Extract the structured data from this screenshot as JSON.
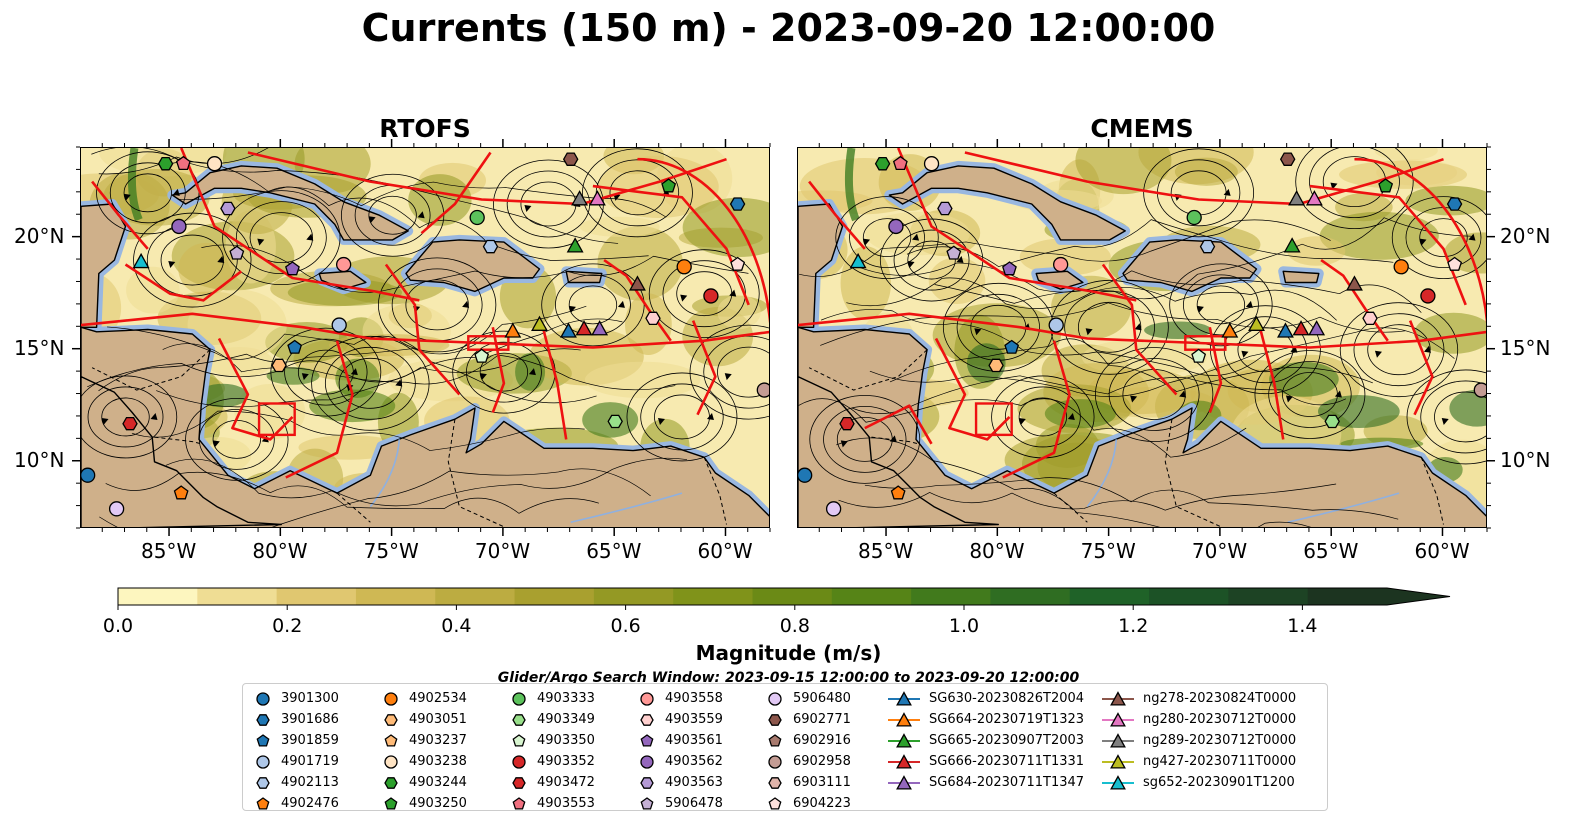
{
  "chart_data": {
    "type": "heatmap",
    "title": "Currents (150 m) - 2023-09-20 12:00:00",
    "panels": [
      {
        "title": "RTOFS"
      },
      {
        "title": "CMEMS"
      }
    ],
    "x_ticks": [
      "85°W",
      "80°W",
      "75°W",
      "70°W",
      "65°W",
      "60°W"
    ],
    "y_ticks": [
      "20°N",
      "15°N",
      "10°N"
    ],
    "xlim": [
      -89,
      -58
    ],
    "ylim": [
      7,
      24
    ],
    "colorbar": {
      "label": "Magnitude (m/s)",
      "ticks": [
        "0.0",
        "0.2",
        "0.4",
        "0.6",
        "0.8",
        "1.0",
        "1.2",
        "1.4"
      ],
      "range": [
        0,
        1.5
      ],
      "colors": [
        "#fdf6bf",
        "#efdd94",
        "#e0c770",
        "#cfb854",
        "#bcac41",
        "#a9a02f",
        "#949924",
        "#80931a",
        "#6b8a16",
        "#568417",
        "#417a1c",
        "#2f6d22",
        "#1f6228",
        "#1c5226",
        "#1d4324",
        "#1c3420"
      ]
    },
    "window_title": "Glider/Argo Search Window: 2023-09-15 12:00:00 to 2023-09-20 12:00:00",
    "legend_entries": [
      {
        "label": "3901300",
        "marker": "circle",
        "color": "#1f77b4"
      },
      {
        "label": "3901686",
        "marker": "hexagon",
        "color": "#1f77b4"
      },
      {
        "label": "3901859",
        "marker": "pentagon",
        "color": "#1f77b4"
      },
      {
        "label": "4901719",
        "marker": "circle",
        "color": "#aec7e8"
      },
      {
        "label": "4902113",
        "marker": "hexagon",
        "color": "#aec7e8"
      },
      {
        "label": "4902476",
        "marker": "pentagon",
        "color": "#ff7f0e"
      },
      {
        "label": "4902534",
        "marker": "circle",
        "color": "#ff7f0e"
      },
      {
        "label": "4903051",
        "marker": "hexagon",
        "color": "#ffbb78"
      },
      {
        "label": "4903237",
        "marker": "pentagon",
        "color": "#ffbb78"
      },
      {
        "label": "4903238",
        "marker": "circle",
        "color": "#ffe4c4"
      },
      {
        "label": "4903244",
        "marker": "hexagon",
        "color": "#2ca02c"
      },
      {
        "label": "4903250",
        "marker": "pentagon",
        "color": "#2ca02c"
      },
      {
        "label": "4903333",
        "marker": "circle",
        "color": "#5cc25c"
      },
      {
        "label": "4903349",
        "marker": "hexagon",
        "color": "#98df8a"
      },
      {
        "label": "4903350",
        "marker": "pentagon",
        "color": "#d8f5d0"
      },
      {
        "label": "4903352",
        "marker": "circle",
        "color": "#d62728"
      },
      {
        "label": "4903472",
        "marker": "hexagon",
        "color": "#d62728"
      },
      {
        "label": "4903553",
        "marker": "pentagon",
        "color": "#f07080"
      },
      {
        "label": "4903558",
        "marker": "circle",
        "color": "#ff9896"
      },
      {
        "label": "4903559",
        "marker": "hexagon",
        "color": "#ffd0cf"
      },
      {
        "label": "4903561",
        "marker": "pentagon",
        "color": "#9467bd"
      },
      {
        "label": "4903562",
        "marker": "circle",
        "color": "#9467bd"
      },
      {
        "label": "4903563",
        "marker": "hexagon",
        "color": "#b59ad6"
      },
      {
        "label": "5906478",
        "marker": "pentagon",
        "color": "#c5b0d5"
      },
      {
        "label": "5906480",
        "marker": "circle",
        "color": "#e2c9f5"
      },
      {
        "label": "6902771",
        "marker": "hexagon",
        "color": "#8c564b"
      },
      {
        "label": "6902916",
        "marker": "pentagon",
        "color": "#a87a6e"
      },
      {
        "label": "6902958",
        "marker": "circle",
        "color": "#c49c94"
      },
      {
        "label": "6903111",
        "marker": "hexagon",
        "color": "#e0b4aa"
      },
      {
        "label": "6904223",
        "marker": "pentagon",
        "color": "#fde0dc"
      },
      {
        "label": "SG630-20230826T2004",
        "marker": "triangle",
        "color": "#1f77b4"
      },
      {
        "label": "SG664-20230719T1323",
        "marker": "triangle",
        "color": "#ff7f0e"
      },
      {
        "label": "SG665-20230907T2003",
        "marker": "triangle",
        "color": "#2ca02c"
      },
      {
        "label": "SG666-20230711T1331",
        "marker": "triangle",
        "color": "#d62728"
      },
      {
        "label": "SG684-20230711T1347",
        "marker": "triangle",
        "color": "#9467bd"
      },
      {
        "label": "ng278-20230824T0000",
        "marker": "triangle",
        "color": "#8c564b"
      },
      {
        "label": "ng280-20230712T0000",
        "marker": "triangle",
        "color": "#e377c2"
      },
      {
        "label": "ng289-20230712T0000",
        "marker": "triangle",
        "color": "#7f7f7f"
      },
      {
        "label": "ng427-20230711T0000",
        "marker": "triangle",
        "color": "#bcbd22"
      },
      {
        "label": "sg652-20230901T1200",
        "marker": "triangle",
        "color": "#17becf"
      }
    ],
    "platform_positions": [
      {
        "label": "SG630-20230826T2004",
        "lon": -67.1,
        "lat": 15.8
      },
      {
        "label": "SG664-20230719T1323",
        "lon": -69.6,
        "lat": 15.8
      },
      {
        "label": "SG665-20230907T2003",
        "lon": -66.8,
        "lat": 19.6
      },
      {
        "label": "SG666-20230711T1331",
        "lon": -66.4,
        "lat": 15.9
      },
      {
        "label": "SG684-20230711T1347",
        "lon": -65.7,
        "lat": 15.9
      },
      {
        "label": "ng278-20230824T0000",
        "lon": -64.0,
        "lat": 17.9
      },
      {
        "label": "ng280-20230712T0000",
        "lon": -65.8,
        "lat": 21.7
      },
      {
        "label": "ng289-20230712T0000",
        "lon": -66.6,
        "lat": 21.7
      },
      {
        "label": "ng427-20230711T0000",
        "lon": -68.4,
        "lat": 16.1
      },
      {
        "label": "sg652-20230901T1200",
        "lon": -86.3,
        "lat": 18.9
      },
      {
        "label": "3901300",
        "lon": -88.7,
        "lat": 9.4
      },
      {
        "label": "3901686",
        "lon": -59.5,
        "lat": 21.5
      },
      {
        "label": "3901859",
        "lon": -79.4,
        "lat": 15.1
      },
      {
        "label": "4901719",
        "lon": -77.4,
        "lat": 16.1
      },
      {
        "label": "4902113",
        "lon": -70.6,
        "lat": 19.6
      },
      {
        "label": "4902476",
        "lon": -84.5,
        "lat": 8.6
      },
      {
        "label": "4902534",
        "lon": -61.9,
        "lat": 18.7
      },
      {
        "label": "4903051",
        "lon": -80.1,
        "lat": 14.3
      },
      {
        "label": "4903238",
        "lon": -83.0,
        "lat": 23.3
      },
      {
        "label": "4903244",
        "lon": -85.2,
        "lat": 23.3
      },
      {
        "label": "4903250",
        "lon": -62.6,
        "lat": 22.3
      },
      {
        "label": "4903333",
        "lon": -71.2,
        "lat": 20.9
      },
      {
        "label": "4903350",
        "lon": -71.0,
        "lat": 14.7
      },
      {
        "label": "4903349",
        "lon": -65.0,
        "lat": 11.8
      },
      {
        "label": "4903352",
        "lon": -60.7,
        "lat": 17.4
      },
      {
        "label": "4903553",
        "lon": -84.4,
        "lat": 23.3
      },
      {
        "label": "4903558",
        "lon": -77.2,
        "lat": 18.8
      },
      {
        "label": "4903559",
        "lon": -63.3,
        "lat": 16.4
      },
      {
        "label": "4903561",
        "lon": -79.5,
        "lat": 18.6
      },
      {
        "label": "4903562",
        "lon": -84.6,
        "lat": 20.5
      },
      {
        "label": "4903563",
        "lon": -82.4,
        "lat": 21.3
      },
      {
        "label": "5906478",
        "lon": -82.0,
        "lat": 19.3
      },
      {
        "label": "5906480",
        "lon": -87.4,
        "lat": 7.9
      },
      {
        "label": "6902771",
        "lon": -67.0,
        "lat": 23.5
      },
      {
        "label": "6902958",
        "lon": -58.3,
        "lat": 13.2
      },
      {
        "label": "6904223",
        "lon": -59.5,
        "lat": 18.8
      },
      {
        "label": "4903472",
        "lon": -86.8,
        "lat": 11.7
      }
    ]
  }
}
